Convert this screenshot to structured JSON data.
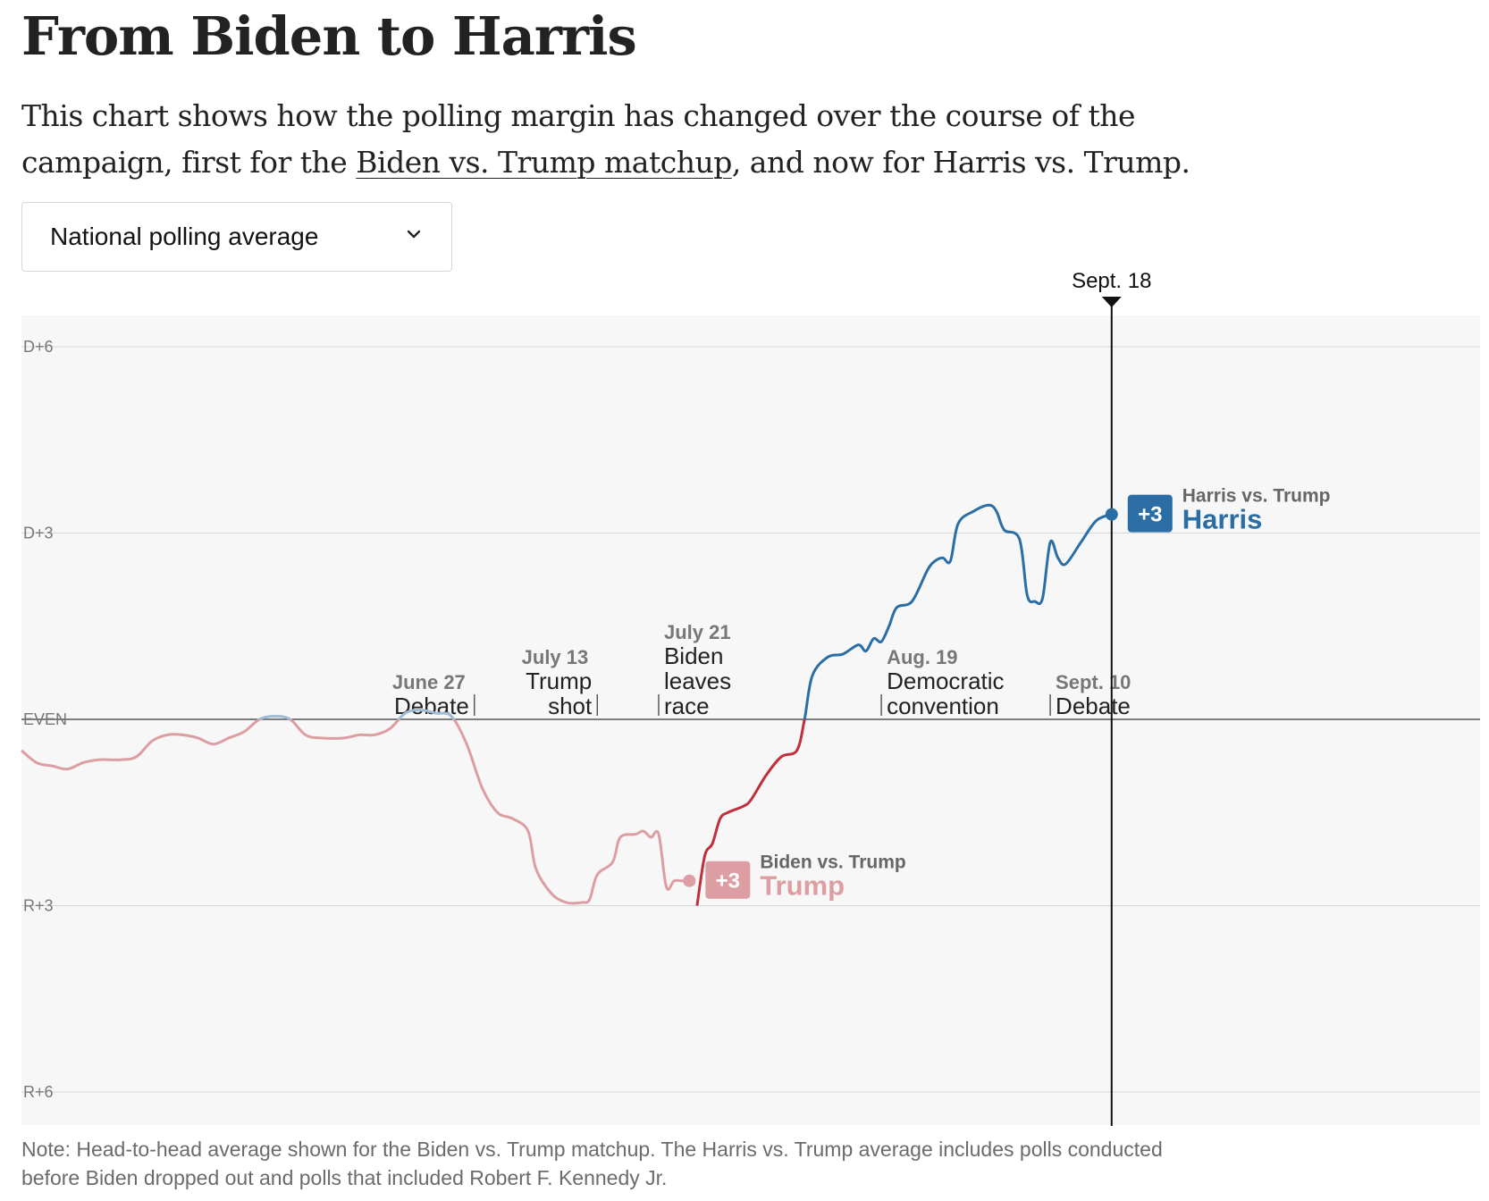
{
  "title": "From Biden to Harris",
  "subtitle": {
    "before": "This chart shows how the polling margin has changed over the course of the campaign, first for the ",
    "link": "Biden vs. Trump matchup",
    "after": ", and now for Harris vs. Trump."
  },
  "dropdown": {
    "selected": "National polling average",
    "icon": "chevron-down-icon"
  },
  "note": "Note: Head-to-head average shown for the Biden vs. Trump matchup. The Harris vs. Trump average includes polls conducted before Biden dropped out and polls that included Robert F. Kennedy Jr.",
  "colors": {
    "harris": "#2b6ea6",
    "trump_dark": "#c0303a",
    "trump_light": "#dc9ea2",
    "biden_light_blue": "#9fbcd4",
    "grid": "#d7d7d7",
    "plot_bg": "#f7f7f7"
  },
  "chart_data": {
    "type": "line",
    "xlabel": "",
    "ylabel": "",
    "y_unit": "margin, pct points (positive = D, negative = R)",
    "ylim": [
      -6.5,
      6.5
    ],
    "y_ticks": [
      {
        "value": 6,
        "label": "D+6"
      },
      {
        "value": 3,
        "label": "D+3"
      },
      {
        "value": 0,
        "label": "EVEN"
      },
      {
        "value": -3,
        "label": "R+3"
      },
      {
        "value": -6,
        "label": "R+6"
      }
    ],
    "x_domain": [
      "2024-04-29",
      "2024-09-21"
    ],
    "current_date": {
      "date": "2024-09-18",
      "label": "Sept. 18"
    },
    "events": [
      {
        "date": "2024-06-27",
        "date_label": "June 27",
        "label": [
          "Debate"
        ],
        "side": "left"
      },
      {
        "date": "2024-07-13",
        "date_label": "July 13",
        "label": [
          "Trump",
          "shot"
        ],
        "side": "left"
      },
      {
        "date": "2024-07-21",
        "date_label": "July 21",
        "label": [
          "Biden",
          "leaves",
          "race"
        ],
        "side": "right"
      },
      {
        "date": "2024-08-19",
        "date_label": "Aug. 19",
        "label": [
          "Democratic",
          "convention"
        ],
        "side": "right"
      },
      {
        "date": "2024-09-10",
        "date_label": "Sept. 10",
        "label": [
          "Debate"
        ],
        "side": "right"
      }
    ],
    "series": [
      {
        "name": "Biden vs. Trump",
        "end_label": {
          "margin": "+3",
          "leader": "Trump"
        },
        "points": [
          [
            "2024-04-29",
            -0.5
          ],
          [
            "2024-05-01",
            -0.7
          ],
          [
            "2024-05-03",
            -0.75
          ],
          [
            "2024-05-05",
            -0.8
          ],
          [
            "2024-05-07",
            -0.7
          ],
          [
            "2024-05-09",
            -0.65
          ],
          [
            "2024-05-12",
            -0.65
          ],
          [
            "2024-05-14",
            -0.6
          ],
          [
            "2024-05-16",
            -0.35
          ],
          [
            "2024-05-18",
            -0.25
          ],
          [
            "2024-05-20",
            -0.25
          ],
          [
            "2024-05-22",
            -0.3
          ],
          [
            "2024-05-24",
            -0.4
          ],
          [
            "2024-05-26",
            -0.3
          ],
          [
            "2024-05-28",
            -0.2
          ],
          [
            "2024-05-30",
            0.0
          ],
          [
            "2024-06-01",
            0.05
          ],
          [
            "2024-06-03",
            0.0
          ],
          [
            "2024-06-05",
            -0.25
          ],
          [
            "2024-06-07",
            -0.3
          ],
          [
            "2024-06-10",
            -0.3
          ],
          [
            "2024-06-12",
            -0.25
          ],
          [
            "2024-06-14",
            -0.25
          ],
          [
            "2024-06-16",
            -0.15
          ],
          [
            "2024-06-18",
            0.1
          ],
          [
            "2024-06-20",
            0.15
          ],
          [
            "2024-06-22",
            0.1
          ],
          [
            "2024-06-24",
            0.05
          ],
          [
            "2024-06-26",
            -0.4
          ],
          [
            "2024-06-28",
            -1.1
          ],
          [
            "2024-06-30",
            -1.5
          ],
          [
            "2024-07-02",
            -1.6
          ],
          [
            "2024-07-04",
            -1.8
          ],
          [
            "2024-07-05",
            -2.4
          ],
          [
            "2024-07-07",
            -2.8
          ],
          [
            "2024-07-09",
            -2.95
          ],
          [
            "2024-07-11",
            -2.95
          ],
          [
            "2024-07-12",
            -2.9
          ],
          [
            "2024-07-13",
            -2.5
          ],
          [
            "2024-07-15",
            -2.3
          ],
          [
            "2024-07-16",
            -1.9
          ],
          [
            "2024-07-18",
            -1.85
          ],
          [
            "2024-07-19",
            -1.8
          ],
          [
            "2024-07-20",
            -1.9
          ],
          [
            "2024-07-21",
            -1.85
          ],
          [
            "2024-07-22",
            -2.7
          ],
          [
            "2024-07-23",
            -2.6
          ],
          [
            "2024-07-24",
            -2.6
          ],
          [
            "2024-07-25",
            -2.6
          ]
        ]
      },
      {
        "name": "Harris vs. Trump",
        "end_label": {
          "margin": "+3",
          "leader": "Harris"
        },
        "points": [
          [
            "2024-07-26",
            -3.0
          ],
          [
            "2024-07-27",
            -2.2
          ],
          [
            "2024-07-28",
            -2.0
          ],
          [
            "2024-07-29",
            -1.6
          ],
          [
            "2024-07-30",
            -1.5
          ],
          [
            "2024-08-01",
            -1.4
          ],
          [
            "2024-08-02",
            -1.3
          ],
          [
            "2024-08-04",
            -0.9
          ],
          [
            "2024-08-06",
            -0.6
          ],
          [
            "2024-08-08",
            -0.5
          ],
          [
            "2024-08-09",
            0.0
          ],
          [
            "2024-08-10",
            0.7
          ],
          [
            "2024-08-12",
            1.0
          ],
          [
            "2024-08-14",
            1.05
          ],
          [
            "2024-08-16",
            1.2
          ],
          [
            "2024-08-17",
            1.1
          ],
          [
            "2024-08-18",
            1.3
          ],
          [
            "2024-08-19",
            1.25
          ],
          [
            "2024-08-20",
            1.5
          ],
          [
            "2024-08-21",
            1.8
          ],
          [
            "2024-08-23",
            1.9
          ],
          [
            "2024-08-25",
            2.4
          ],
          [
            "2024-08-26",
            2.55
          ],
          [
            "2024-08-27",
            2.6
          ],
          [
            "2024-08-28",
            2.55
          ],
          [
            "2024-08-29",
            3.15
          ],
          [
            "2024-08-31",
            3.35
          ],
          [
            "2024-09-02",
            3.45
          ],
          [
            "2024-09-03",
            3.35
          ],
          [
            "2024-09-04",
            3.05
          ],
          [
            "2024-09-06",
            2.9
          ],
          [
            "2024-09-07",
            2.0
          ],
          [
            "2024-09-08",
            1.9
          ],
          [
            "2024-09-09",
            1.95
          ],
          [
            "2024-09-10",
            2.85
          ],
          [
            "2024-09-11",
            2.6
          ],
          [
            "2024-09-12",
            2.5
          ],
          [
            "2024-09-14",
            2.85
          ],
          [
            "2024-09-16",
            3.2
          ],
          [
            "2024-09-18",
            3.3
          ]
        ]
      }
    ]
  }
}
